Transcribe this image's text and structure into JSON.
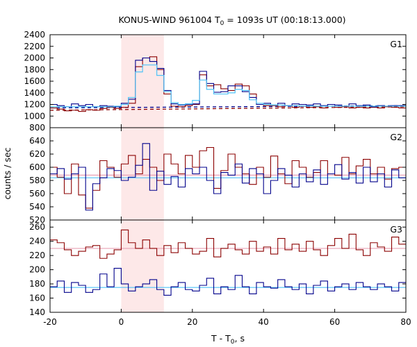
{
  "chart_data": {
    "type": "line",
    "title": "KONUS-WIND 961004 T",
    "title_sub": "0",
    "title_rest": " = 1093s UT (00:18:13.000)",
    "xlabel": "T - T",
    "xlabel_sub": "0",
    "xlabel_rest": ", s",
    "ylabel": "counts / sec",
    "xlim": [
      -20,
      80
    ],
    "xticks": [
      -20,
      0,
      20,
      40,
      60,
      80
    ],
    "shaded_interval": [
      0,
      12
    ],
    "colors": {
      "red": "#8b0000",
      "blue": "#00008b",
      "cyan": "#4fc3f7",
      "pink_fit": "#e8a0b4",
      "shade": "#fde8e8"
    },
    "bin_width": 2,
    "panels": [
      {
        "name": "G1",
        "ylim": [
          800,
          2400
        ],
        "yticks": [
          800,
          1000,
          1200,
          1400,
          1600,
          1800,
          2000,
          2200,
          2400
        ],
        "series": [
          {
            "color": "red",
            "x": [
              -20,
              -18,
              -16,
              -14,
              -12,
              -10,
              -8,
              -6,
              -4,
              -2,
              0,
              2,
              4,
              6,
              8,
              10,
              12,
              14,
              16,
              18,
              20,
              22,
              24,
              26,
              28,
              30,
              32,
              34,
              36,
              38,
              40,
              42,
              44,
              46,
              48,
              50,
              52,
              54,
              56,
              58,
              60,
              62,
              64,
              66,
              68,
              70,
              72,
              74,
              76,
              78
            ],
            "values": [
              1140,
              1120,
              1090,
              1100,
              1080,
              1110,
              1100,
              1130,
              1150,
              1130,
              1150,
              1220,
              1850,
              2000,
              2020,
              1800,
              1380,
              1170,
              1160,
              1180,
              1200,
              1710,
              1520,
              1540,
              1470,
              1440,
              1550,
              1520,
              1380,
              1200,
              1180,
              1180,
              1160,
              1180,
              1150,
              1170,
              1150,
              1160,
              1140,
              1170,
              1150,
              1160,
              1140,
              1150,
              1140,
              1150,
              1140,
              1160,
              1150,
              1140
            ]
          },
          {
            "color": "blue",
            "x": [
              -20,
              -18,
              -16,
              -14,
              -12,
              -10,
              -8,
              -6,
              -4,
              -2,
              0,
              2,
              4,
              6,
              8,
              10,
              12,
              14,
              16,
              18,
              20,
              22,
              24,
              26,
              28,
              30,
              32,
              34,
              36,
              38,
              40,
              42,
              44,
              46,
              48,
              50,
              52,
              54,
              56,
              58,
              60,
              62,
              64,
              66,
              68,
              70,
              72,
              74,
              76,
              78
            ],
            "values": [
              1200,
              1180,
              1160,
              1210,
              1180,
              1200,
              1160,
              1180,
              1170,
              1160,
              1220,
              1290,
              1960,
              2000,
              1940,
              1820,
              1440,
              1210,
              1190,
              1200,
              1210,
              1770,
              1560,
              1410,
              1420,
              1520,
              1520,
              1420,
              1320,
              1200,
              1220,
              1190,
              1220,
              1180,
              1210,
              1200,
              1190,
              1210,
              1180,
              1200,
              1190,
              1170,
              1210,
              1180,
              1190,
              1160,
              1180,
              1170,
              1180,
              1180
            ]
          },
          {
            "color": "cyan",
            "x": [
              -20,
              -18,
              -16,
              -14,
              -12,
              -10,
              -8,
              -6,
              -4,
              -2,
              0,
              2,
              4,
              6,
              8,
              10,
              12,
              14,
              16,
              18,
              20,
              22,
              24,
              26,
              28,
              30,
              32,
              34,
              36,
              38,
              40,
              42,
              44,
              46,
              48,
              50,
              52,
              54,
              56,
              58,
              60,
              62,
              64,
              66,
              68,
              70,
              72,
              74,
              76,
              78
            ],
            "values": [
              1160,
              1160,
              1160,
              1160,
              1160,
              1160,
              1160,
              1160,
              1160,
              1170,
              1200,
              1320,
              1760,
              1880,
              1880,
              1700,
              1420,
              1230,
              1200,
              1210,
              1270,
              1620,
              1460,
              1380,
              1380,
              1400,
              1460,
              1440,
              1280,
              1220,
              1200,
              1190,
              1190,
              1180,
              1180,
              1175,
              1175,
              1170,
              1170,
              1170,
              1170,
              1170,
              1170,
              1170,
              1170,
              1170,
              1170,
              1170,
              1170,
              1170
            ]
          }
        ],
        "backgrounds": [
          {
            "color": "red",
            "dashed": true,
            "points": [
              [
                -20,
                1100
              ],
              [
                80,
                1160
              ]
            ]
          },
          {
            "color": "blue",
            "dashed": true,
            "points": [
              [
                -20,
                1140
              ],
              [
                80,
                1180
              ]
            ]
          }
        ]
      },
      {
        "name": "G2",
        "ylim": [
          520,
          660
        ],
        "yticks": [
          520,
          540,
          560,
          580,
          600,
          620,
          640
        ],
        "series": [
          {
            "color": "red",
            "x": [
              -20,
              -18,
              -16,
              -14,
              -12,
              -10,
              -8,
              -6,
              -4,
              -2,
              0,
              2,
              4,
              6,
              8,
              10,
              12,
              14,
              16,
              18,
              20,
              22,
              24,
              26,
              28,
              30,
              32,
              34,
              36,
              38,
              40,
              42,
              44,
              46,
              48,
              50,
              52,
              54,
              56,
              58,
              60,
              62,
              64,
              66,
              68,
              70,
              72,
              74,
              76,
              78
            ],
            "values": [
              600,
              585,
              560,
              605,
              558,
              538,
              565,
              610,
              600,
              585,
              605,
              618,
              590,
              612,
              600,
              580,
              620,
              605,
              590,
              618,
              600,
              625,
              630,
              568,
              595,
              620,
              600,
              590,
              574,
              600,
              585,
              617,
              590,
              575,
              610,
              600,
              585,
              592,
              610,
              590,
              588,
              615,
              590,
              602,
              612,
              590,
              600,
              582,
              598,
              600
            ]
          },
          {
            "color": "blue",
            "x": [
              -20,
              -18,
              -16,
              -14,
              -12,
              -10,
              -8,
              -6,
              -4,
              -2,
              0,
              2,
              4,
              6,
              8,
              10,
              12,
              14,
              16,
              18,
              20,
              22,
              24,
              26,
              28,
              30,
              32,
              34,
              36,
              38,
              40,
              42,
              44,
              46,
              48,
              50,
              52,
              54,
              56,
              58,
              60,
              62,
              64,
              66,
              68,
              70,
              72,
              74,
              76,
              78
            ],
            "values": [
              590,
              598,
              582,
              590,
              600,
              535,
              575,
              584,
              598,
              595,
              580,
              585,
              603,
              636,
              565,
              594,
              574,
              586,
              570,
              598,
              590,
              600,
              580,
              560,
              592,
              588,
              605,
              576,
              598,
              590,
              560,
              580,
              598,
              588,
              570,
              590,
              578,
              596,
              574,
              590,
              604,
              582,
              592,
              576,
              600,
              578,
              590,
              570,
              596,
              584
            ]
          }
        ],
        "fit_lines": [
          {
            "color": "pink_fit",
            "y": 588
          },
          {
            "color": "cyan",
            "y": 584
          }
        ]
      },
      {
        "name": "G3",
        "ylim": [
          140,
          270
        ],
        "yticks": [
          140,
          160,
          180,
          200,
          220,
          240,
          260
        ],
        "series": [
          {
            "color": "red",
            "x": [
              -20,
              -18,
              -16,
              -14,
              -12,
              -10,
              -8,
              -6,
              -4,
              -2,
              0,
              2,
              4,
              6,
              8,
              10,
              12,
              14,
              16,
              18,
              20,
              22,
              24,
              26,
              28,
              30,
              32,
              34,
              36,
              38,
              40,
              42,
              44,
              46,
              48,
              50,
              52,
              54,
              56,
              58,
              60,
              62,
              64,
              66,
              68,
              70,
              72,
              74,
              76,
              78
            ],
            "values": [
              242,
              238,
              228,
              220,
              226,
              232,
              234,
              216,
              222,
              228,
              256,
              238,
              230,
              242,
              230,
              220,
              234,
              224,
              238,
              230,
              222,
              226,
              244,
              218,
              230,
              236,
              228,
              222,
              240,
              226,
              232,
              222,
              244,
              228,
              236,
              226,
              240,
              228,
              220,
              234,
              244,
              230,
              250,
              228,
              220,
              238,
              232,
              226,
              246,
              236
            ]
          },
          {
            "color": "blue",
            "x": [
              -20,
              -18,
              -16,
              -14,
              -12,
              -10,
              -8,
              -6,
              -4,
              -2,
              0,
              2,
              4,
              6,
              8,
              10,
              12,
              14,
              16,
              18,
              20,
              22,
              24,
              26,
              28,
              30,
              32,
              34,
              36,
              38,
              40,
              42,
              44,
              46,
              48,
              50,
              52,
              54,
              56,
              58,
              60,
              62,
              64,
              66,
              68,
              70,
              72,
              74,
              76,
              78
            ],
            "values": [
              176,
              184,
              168,
              182,
              178,
              168,
              172,
              194,
              176,
              202,
              180,
              170,
              176,
              180,
              186,
              172,
              164,
              176,
              182,
              172,
              170,
              178,
              188,
              166,
              176,
              172,
              192,
              176,
              166,
              182,
              176,
              174,
              186,
              176,
              172,
              180,
              166,
              178,
              184,
              170,
              176,
              180,
              172,
              182,
              176,
              172,
              180,
              176,
              170,
              182
            ]
          }
        ],
        "fit_lines": [
          {
            "color": "pink_fit",
            "y": 230
          },
          {
            "color": "cyan",
            "y": 175
          }
        ]
      }
    ]
  }
}
